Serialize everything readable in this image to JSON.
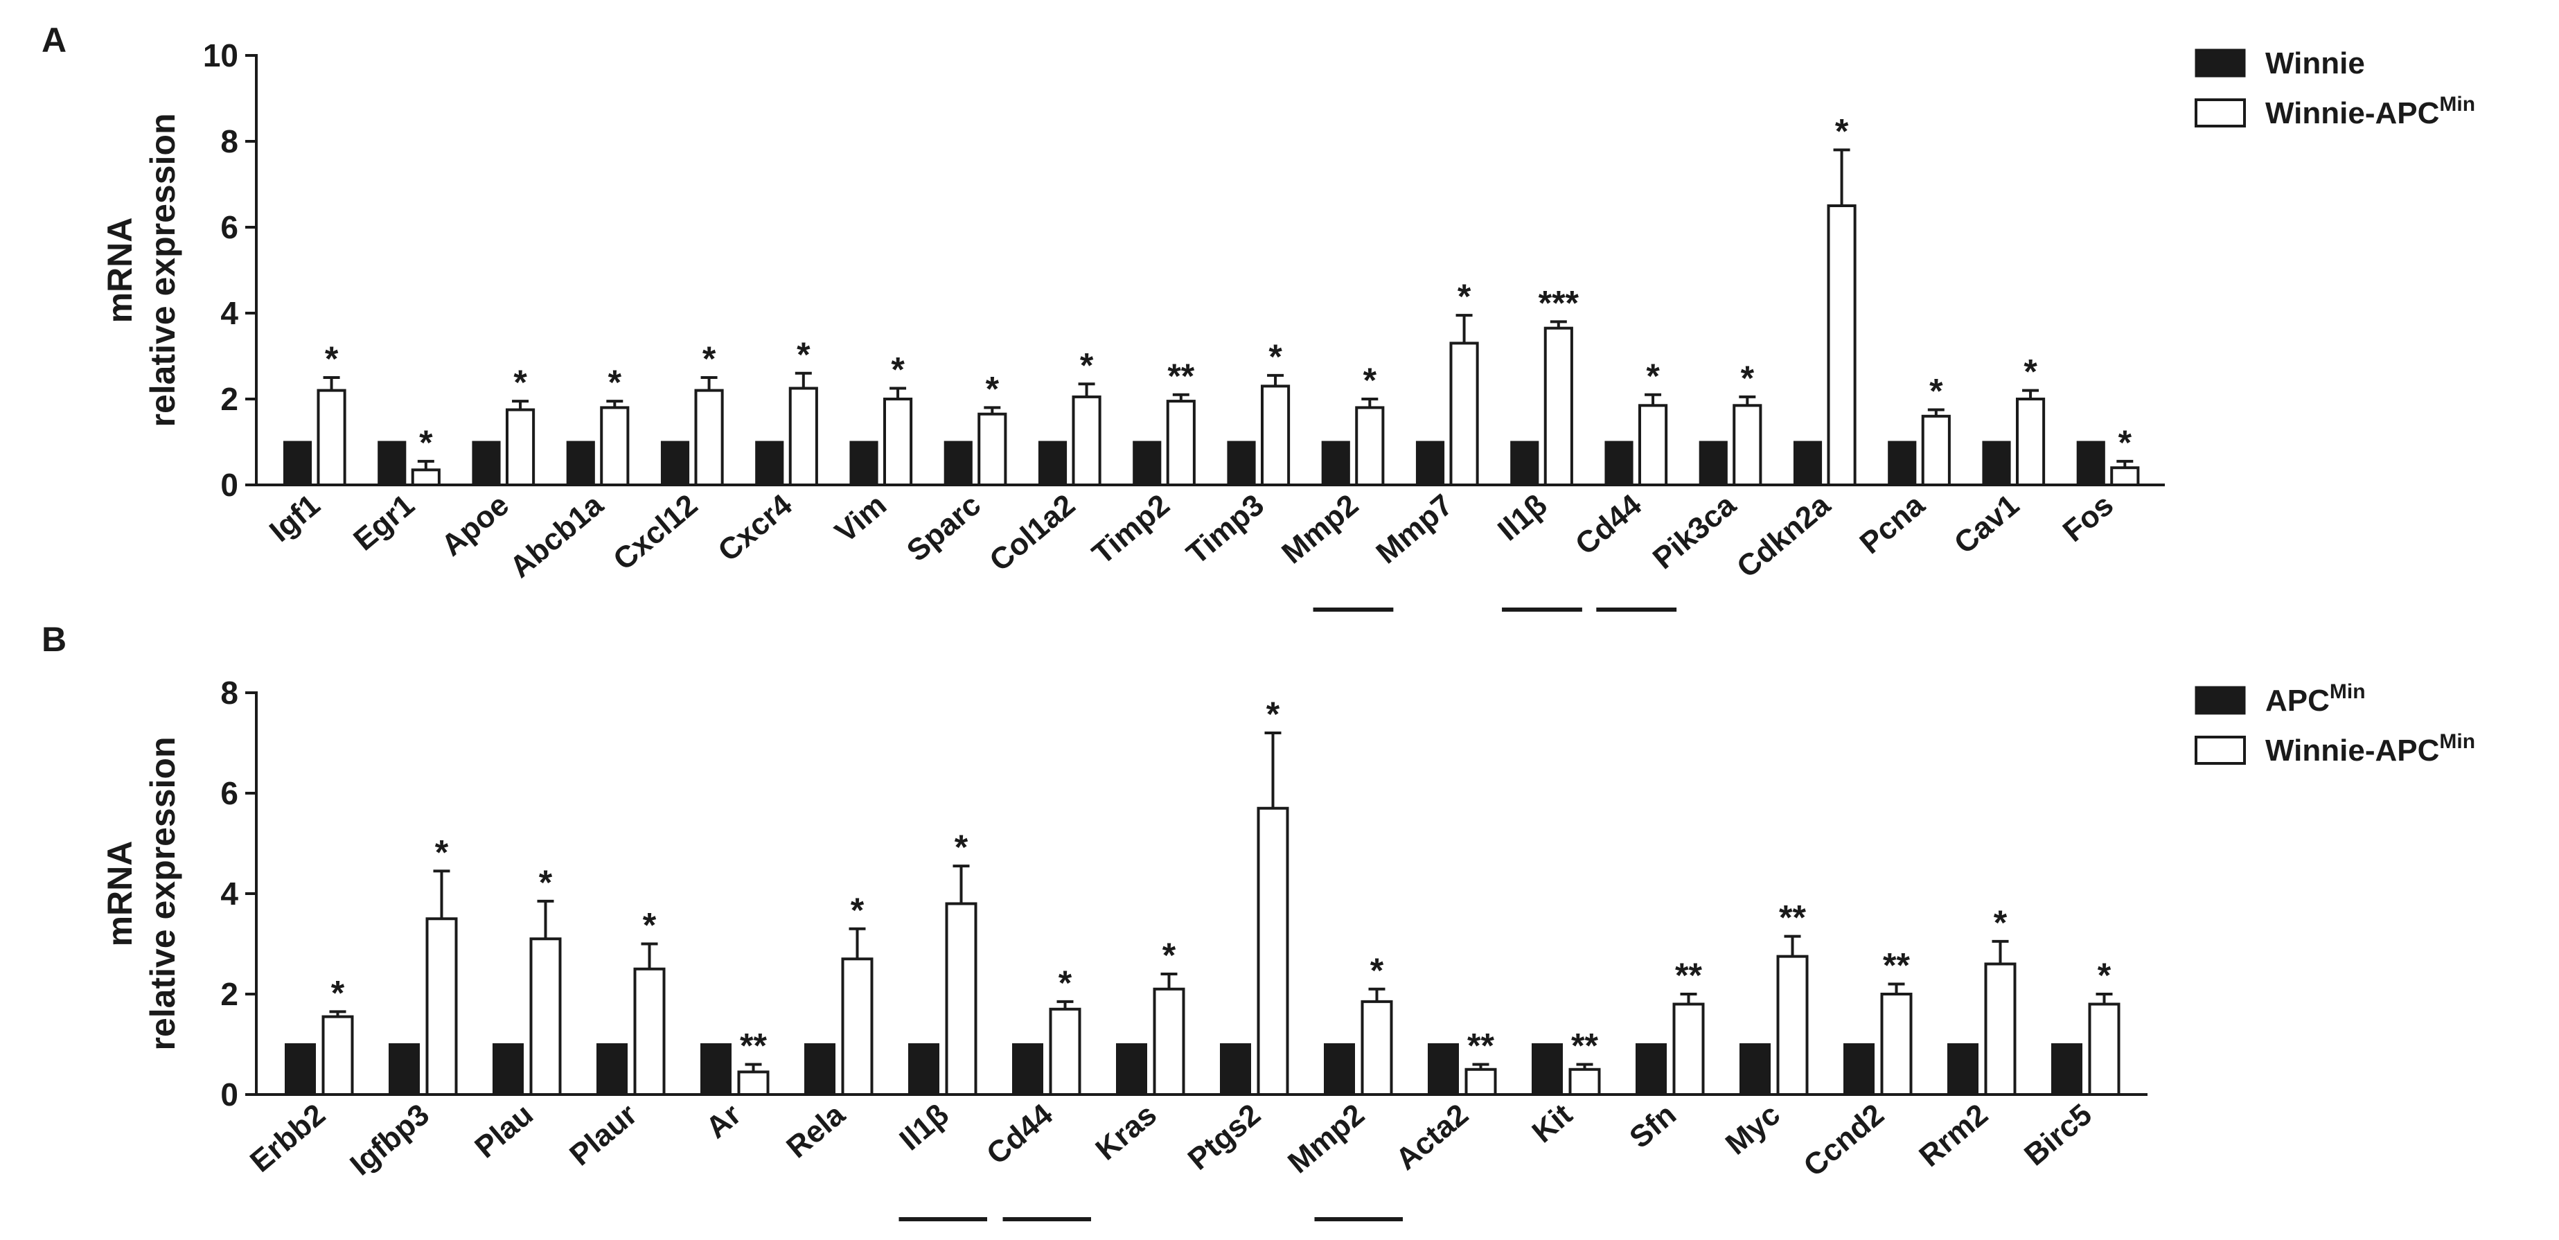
{
  "chart_data": [
    {
      "panel": "A",
      "type": "bar",
      "ylabel": [
        "mRNA",
        "relative expression"
      ],
      "ylim": [
        0,
        10
      ],
      "yticks": [
        0,
        2,
        4,
        6,
        8,
        10
      ],
      "categories": [
        "Igf1",
        "Egr1",
        "Apoe",
        "Abcb1a",
        "Cxcl12",
        "Cxcr4",
        "Vim",
        "Sparc",
        "Col1a2",
        "Timp2",
        "Timp3",
        "Mmp2",
        "Mmp7",
        "Il1β",
        "Cd44",
        "Pik3ca",
        "Cdkn2a",
        "Pcna",
        "Cav1",
        "Fos"
      ],
      "underlined": [
        "Mmp2",
        "Il1β",
        "Cd44"
      ],
      "series": [
        {
          "name": "Winnie",
          "name_sup": "",
          "color": "#1a1a1a",
          "values": [
            1,
            1,
            1,
            1,
            1,
            1,
            1,
            1,
            1,
            1,
            1,
            1,
            1,
            1,
            1,
            1,
            1,
            1,
            1,
            1
          ]
        },
        {
          "name": "Winnie-APC",
          "name_sup": "Min",
          "color": "#ffffff",
          "values": [
            2.2,
            0.35,
            1.75,
            1.8,
            2.2,
            2.25,
            2.0,
            1.65,
            2.05,
            1.95,
            2.3,
            1.8,
            3.3,
            3.65,
            1.85,
            1.85,
            6.5,
            1.6,
            2.0,
            0.4
          ],
          "errors": [
            0.3,
            0.2,
            0.2,
            0.15,
            0.3,
            0.35,
            0.25,
            0.15,
            0.3,
            0.15,
            0.25,
            0.2,
            0.65,
            0.15,
            0.25,
            0.2,
            1.3,
            0.15,
            0.2,
            0.15
          ],
          "significance": [
            "*",
            "*",
            "*",
            "*",
            "*",
            "*",
            "*",
            "*",
            "*",
            "**",
            "*",
            "*",
            "*",
            "***",
            "*",
            "*",
            "*",
            "*",
            "*",
            "*"
          ]
        }
      ]
    },
    {
      "panel": "B",
      "type": "bar",
      "ylabel": [
        "mRNA",
        "relative expression"
      ],
      "ylim": [
        0,
        8
      ],
      "yticks": [
        0,
        2,
        4,
        6,
        8
      ],
      "categories": [
        "Erbb2",
        "Igfbp3",
        "Plau",
        "Plaur",
        "Ar",
        "Rela",
        "Il1β",
        "Cd44",
        "Kras",
        "Ptgs2",
        "Mmp2",
        "Acta2",
        "Kit",
        "Sfn",
        "Myc",
        "Ccnd2",
        "Rrm2",
        "Birc5"
      ],
      "underlined": [
        "Il1β",
        "Cd44",
        "Mmp2"
      ],
      "series": [
        {
          "name": "APC",
          "name_sup": "Min",
          "color": "#1a1a1a",
          "values": [
            1,
            1,
            1,
            1,
            1,
            1,
            1,
            1,
            1,
            1,
            1,
            1,
            1,
            1,
            1,
            1,
            1,
            1
          ]
        },
        {
          "name": "Winnie-APC",
          "name_sup": "Min",
          "color": "#ffffff",
          "values": [
            1.55,
            3.5,
            3.1,
            2.5,
            0.45,
            2.7,
            3.8,
            1.7,
            2.1,
            5.7,
            1.85,
            0.5,
            0.5,
            1.8,
            2.75,
            2.0,
            2.6,
            1.8
          ],
          "errors": [
            0.1,
            0.95,
            0.75,
            0.5,
            0.15,
            0.6,
            0.75,
            0.15,
            0.3,
            1.5,
            0.25,
            0.1,
            0.1,
            0.2,
            0.4,
            0.2,
            0.45,
            0.2
          ],
          "significance": [
            "*",
            "*",
            "*",
            "*",
            "**",
            "*",
            "*",
            "*",
            "*",
            "*",
            "*",
            "**",
            "**",
            "**",
            "**",
            "**",
            "*",
            "*"
          ]
        }
      ]
    }
  ]
}
